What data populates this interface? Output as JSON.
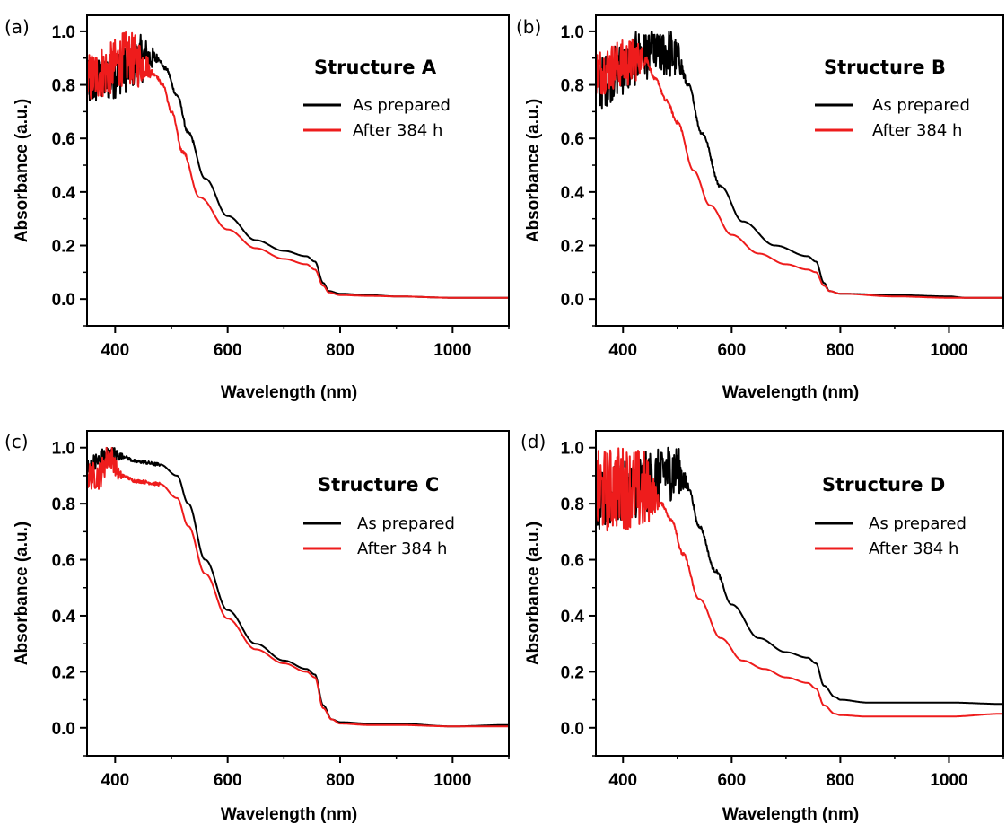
{
  "colors": {
    "as_prepared": "#000000",
    "after_384h": "#ee1c1c",
    "axis": "#000000"
  },
  "chart_data": [
    {
      "type": "line",
      "panel_label": "(a)",
      "title": "Structure A",
      "xlabel": "Wavelength (nm)",
      "ylabel": "Absorbance (a.u.)",
      "xlim": [
        350,
        1100
      ],
      "ylim": [
        -0.1,
        1.06
      ],
      "xticks": [
        400,
        600,
        800,
        1000
      ],
      "xtick_labels": [
        "400",
        "600",
        "800",
        "1000"
      ],
      "yticks": [
        0.0,
        0.2,
        0.4,
        0.6,
        0.8,
        1.0
      ],
      "ytick_labels": [
        "0.0",
        "0.2",
        "0.4",
        "0.6",
        "0.8",
        "1.0"
      ],
      "legend": "right",
      "series": [
        {
          "name": "As prepared",
          "color": "#000000",
          "x": [
            350,
            380,
            420,
            450,
            475,
            490,
            510,
            530,
            560,
            600,
            650,
            700,
            740,
            755,
            770,
            780,
            800,
            850,
            900,
            1000,
            1100
          ],
          "y": [
            0.8,
            0.82,
            0.86,
            0.9,
            0.9,
            0.86,
            0.76,
            0.62,
            0.45,
            0.31,
            0.22,
            0.18,
            0.16,
            0.14,
            0.06,
            0.03,
            0.02,
            0.015,
            0.01,
            0.005,
            0.005
          ],
          "noise": [
            {
              "from": 350,
              "to": 480,
              "amp": 0.09
            }
          ]
        },
        {
          "name": "After 384 h",
          "color": "#ee1c1c",
          "x": [
            350,
            380,
            420,
            450,
            470,
            485,
            500,
            520,
            550,
            600,
            650,
            700,
            740,
            755,
            770,
            780,
            800,
            850,
            900,
            1000,
            1100
          ],
          "y": [
            0.82,
            0.85,
            0.9,
            0.88,
            0.84,
            0.8,
            0.7,
            0.55,
            0.38,
            0.26,
            0.19,
            0.15,
            0.13,
            0.11,
            0.05,
            0.025,
            0.015,
            0.012,
            0.01,
            0.005,
            0.005
          ],
          "noise": [
            {
              "from": 350,
              "to": 470,
              "amp": 0.1
            }
          ]
        }
      ]
    },
    {
      "type": "line",
      "panel_label": "(b)",
      "title": "Structure B",
      "xlabel": "Wavelength (nm)",
      "ylabel": "Absorbance (a.u.)",
      "xlim": [
        350,
        1100
      ],
      "ylim": [
        -0.1,
        1.06
      ],
      "xticks": [
        400,
        600,
        800,
        1000
      ],
      "xtick_labels": [
        "400",
        "600",
        "800",
        "1000"
      ],
      "yticks": [
        0.0,
        0.2,
        0.4,
        0.6,
        0.8,
        1.0
      ],
      "ytick_labels": [
        "0.0",
        "0.2",
        "0.4",
        "0.6",
        "0.8",
        "1.0"
      ],
      "legend": "right",
      "series": [
        {
          "name": "As prepared",
          "color": "#000000",
          "x": [
            350,
            400,
            440,
            470,
            500,
            520,
            545,
            580,
            620,
            680,
            740,
            755,
            770,
            780,
            800,
            900,
            1000,
            1030,
            1100
          ],
          "y": [
            0.8,
            0.86,
            0.92,
            0.93,
            0.9,
            0.8,
            0.62,
            0.42,
            0.29,
            0.2,
            0.16,
            0.14,
            0.06,
            0.03,
            0.02,
            0.015,
            0.01,
            0.005,
            0.005
          ],
          "noise": [
            {
              "from": 350,
              "to": 520,
              "amp": 0.1
            }
          ]
        },
        {
          "name": "After 384 h",
          "color": "#ee1c1c",
          "x": [
            350,
            400,
            440,
            460,
            480,
            500,
            530,
            560,
            600,
            650,
            700,
            740,
            755,
            770,
            780,
            800,
            900,
            1000,
            1100
          ],
          "y": [
            0.85,
            0.88,
            0.9,
            0.82,
            0.74,
            0.66,
            0.48,
            0.35,
            0.24,
            0.17,
            0.13,
            0.11,
            0.1,
            0.05,
            0.03,
            0.02,
            0.01,
            0.005,
            0.005
          ],
          "noise": [
            {
              "from": 350,
              "to": 450,
              "amp": 0.09
            }
          ]
        }
      ]
    },
    {
      "type": "line",
      "panel_label": "(c)",
      "title": "Structure C",
      "xlabel": "Wavelength (nm)",
      "ylabel": "Absorbance (a.u.)",
      "xlim": [
        350,
        1100
      ],
      "ylim": [
        -0.1,
        1.06
      ],
      "xticks": [
        400,
        600,
        800,
        1000
      ],
      "xtick_labels": [
        "400",
        "600",
        "800",
        "1000"
      ],
      "yticks": [
        0.0,
        0.2,
        0.4,
        0.6,
        0.8,
        1.0
      ],
      "ytick_labels": [
        "0.0",
        "0.2",
        "0.4",
        "0.6",
        "0.8",
        "1.0"
      ],
      "legend": "right",
      "series": [
        {
          "name": "As prepared",
          "color": "#000000",
          "x": [
            350,
            370,
            390,
            410,
            440,
            480,
            510,
            530,
            560,
            600,
            650,
            700,
            740,
            755,
            770,
            785,
            800,
            850,
            900,
            1000,
            1100
          ],
          "y": [
            0.92,
            0.95,
            0.98,
            0.97,
            0.95,
            0.94,
            0.9,
            0.8,
            0.6,
            0.42,
            0.3,
            0.24,
            0.21,
            0.19,
            0.08,
            0.03,
            0.02,
            0.015,
            0.015,
            0.005,
            0.01
          ],
          "noise": [
            {
              "from": 350,
              "to": 420,
              "amp": 0.04
            }
          ]
        },
        {
          "name": "After 384 h",
          "color": "#ee1c1c",
          "x": [
            350,
            370,
            390,
            410,
            440,
            480,
            510,
            530,
            560,
            600,
            650,
            700,
            740,
            755,
            770,
            785,
            800,
            850,
            900,
            1000,
            1100
          ],
          "y": [
            0.9,
            0.9,
            0.97,
            0.9,
            0.88,
            0.87,
            0.82,
            0.72,
            0.55,
            0.39,
            0.28,
            0.23,
            0.2,
            0.18,
            0.07,
            0.03,
            0.015,
            0.01,
            0.01,
            0.005,
            0.005
          ],
          "noise": [
            {
              "from": 350,
              "to": 420,
              "amp": 0.05
            }
          ]
        }
      ]
    },
    {
      "type": "line",
      "panel_label": "(d)",
      "title": "Structure D",
      "xlabel": "Wavelength (nm)",
      "ylabel": "Absorbance (a.u.)",
      "xlim": [
        350,
        1100
      ],
      "ylim": [
        -0.1,
        1.06
      ],
      "xticks": [
        400,
        600,
        800,
        1000
      ],
      "xtick_labels": [
        "400",
        "600",
        "800",
        "1000"
      ],
      "yticks": [
        0.0,
        0.2,
        0.4,
        0.6,
        0.8,
        1.0
      ],
      "ytick_labels": [
        "0.0",
        "0.2",
        "0.4",
        "0.6",
        "0.8",
        "1.0"
      ],
      "legend": "right",
      "series": [
        {
          "name": "As prepared",
          "color": "#000000",
          "x": [
            350,
            400,
            450,
            480,
            500,
            520,
            540,
            570,
            600,
            650,
            700,
            740,
            755,
            770,
            790,
            800,
            850,
            900,
            1000,
            1100
          ],
          "y": [
            0.8,
            0.84,
            0.88,
            0.92,
            0.92,
            0.86,
            0.72,
            0.56,
            0.44,
            0.32,
            0.27,
            0.25,
            0.23,
            0.15,
            0.11,
            0.1,
            0.09,
            0.09,
            0.09,
            0.085
          ],
          "noise": [
            {
              "from": 350,
              "to": 525,
              "amp": 0.11
            }
          ]
        },
        {
          "name": "After 384 h",
          "color": "#ee1c1c",
          "x": [
            350,
            400,
            450,
            470,
            490,
            510,
            540,
            580,
            620,
            660,
            700,
            740,
            755,
            770,
            790,
            800,
            850,
            900,
            1000,
            1100
          ],
          "y": [
            0.84,
            0.86,
            0.84,
            0.8,
            0.74,
            0.62,
            0.46,
            0.32,
            0.24,
            0.21,
            0.18,
            0.16,
            0.14,
            0.08,
            0.05,
            0.045,
            0.04,
            0.04,
            0.04,
            0.05
          ],
          "noise": [
            {
              "from": 350,
              "to": 470,
              "amp": 0.15
            }
          ]
        }
      ]
    }
  ]
}
